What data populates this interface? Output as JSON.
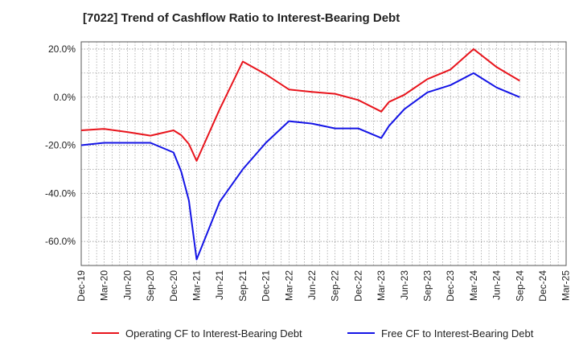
{
  "chart_data": {
    "type": "line",
    "title": "[7022]  Trend of Cashflow Ratio to Interest-Bearing Debt",
    "xlabel": "",
    "ylabel": "",
    "x_tick_labels": [
      "Dec-19",
      "Mar-20",
      "Jun-20",
      "Sep-20",
      "Dec-20",
      "Mar-21",
      "Jun-21",
      "Sep-21",
      "Dec-21",
      "Mar-22",
      "Jun-22",
      "Sep-22",
      "Dec-22",
      "Mar-23",
      "Jun-23",
      "Sep-23",
      "Dec-23",
      "Mar-24",
      "Jun-24",
      "Sep-24",
      "Dec-24",
      "Mar-25"
    ],
    "y_tick_labels": [
      "20.0%",
      "0.0%",
      "-20.0%",
      "-40.0%",
      "-60.0%"
    ],
    "y_ticks": [
      20,
      0,
      -20,
      -40,
      -60
    ],
    "ylim": [
      -70,
      23
    ],
    "grid": true,
    "legend_position": "bottom",
    "series": [
      {
        "name": "Operating CF to Interest-Bearing Debt",
        "color": "#e8141c",
        "points": [
          [
            "Dec-19",
            -13.8
          ],
          [
            "Mar-20",
            -13.2
          ],
          [
            "Jun-20",
            -14.5
          ],
          [
            "Sep-20",
            -16
          ],
          [
            "Dec-20",
            -13.8
          ],
          [
            "Jan-21",
            -15.8
          ],
          [
            "Feb-21",
            -19.5
          ],
          [
            "Mar-21",
            -26.5
          ],
          [
            "Jun-21",
            -5
          ],
          [
            "Sep-21",
            14.8
          ],
          [
            "Dec-21",
            9.5
          ],
          [
            "Mar-22",
            3.2
          ],
          [
            "Jun-22",
            2.2
          ],
          [
            "Sep-22",
            1.4
          ],
          [
            "Dec-22",
            -1.2
          ],
          [
            "Mar-23",
            -6
          ],
          [
            "Apr-23",
            -2
          ],
          [
            "Jun-23",
            1
          ],
          [
            "Sep-23",
            7.5
          ],
          [
            "Dec-23",
            11.5
          ],
          [
            "Mar-24",
            20
          ],
          [
            "Jun-24",
            12.5
          ],
          [
            "Sep-24",
            6.8
          ]
        ]
      },
      {
        "name": "Free CF to Interest-Bearing Debt",
        "color": "#1414e6",
        "points": [
          [
            "Dec-19",
            -20
          ],
          [
            "Mar-20",
            -19
          ],
          [
            "Jun-20",
            -19
          ],
          [
            "Sep-20",
            -19
          ],
          [
            "Dec-20",
            -23
          ],
          [
            "Jan-21",
            -31
          ],
          [
            "Feb-21",
            -43
          ],
          [
            "Mar-21",
            -67.5
          ],
          [
            "Jun-21",
            -43.5
          ],
          [
            "Sep-21",
            -30
          ],
          [
            "Dec-21",
            -19
          ],
          [
            "Mar-22",
            -10
          ],
          [
            "Jun-22",
            -11
          ],
          [
            "Sep-22",
            -13
          ],
          [
            "Dec-22",
            -13
          ],
          [
            "Mar-23",
            -17
          ],
          [
            "Apr-23",
            -12
          ],
          [
            "Jun-23",
            -5
          ],
          [
            "Sep-23",
            2
          ],
          [
            "Dec-23",
            5
          ],
          [
            "Mar-24",
            10
          ],
          [
            "Jun-24",
            4
          ],
          [
            "Sep-24",
            0
          ]
        ]
      }
    ]
  }
}
